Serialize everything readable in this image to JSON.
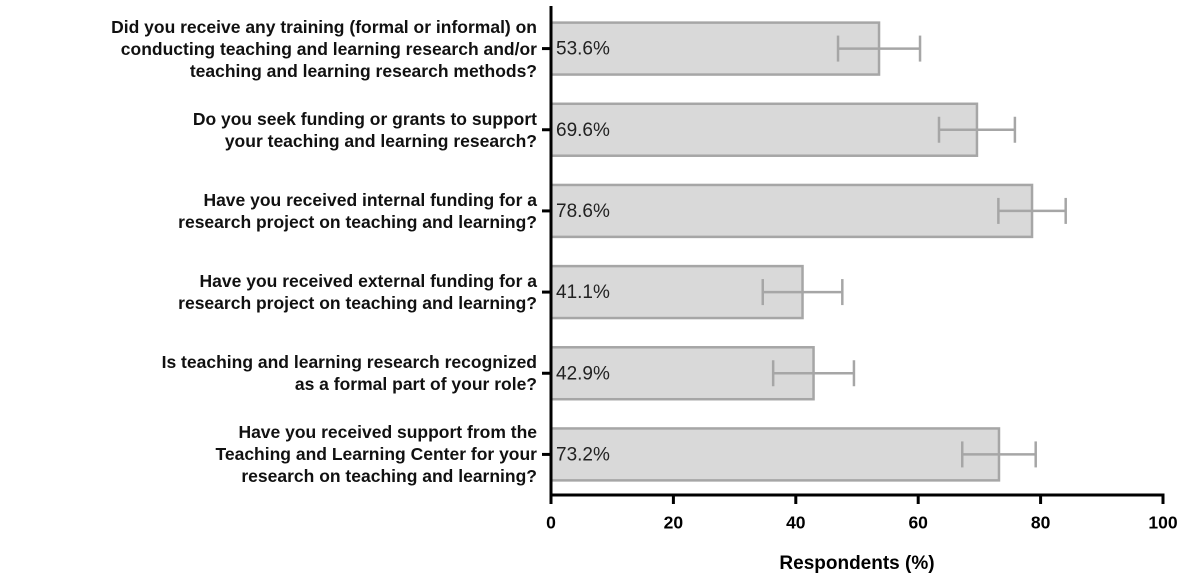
{
  "chart_data": {
    "type": "bar",
    "orientation": "horizontal",
    "categories": [
      "Did you receive any training (formal or informal) on\nconducting teaching and learning research and/or\nteaching and learning research methods?",
      "Do you seek funding or grants to support\nyour teaching and learning research?",
      "Have you received internal funding for a\nresearch project on teaching and learning?",
      "Have you received external funding for a\nresearch project on teaching and learning?",
      "Is teaching and learning research recognized\nas a formal part of your role?",
      "Have you received support from the\nTeaching and Learning Center for your\nresearch on teaching and learning?"
    ],
    "values": [
      53.6,
      69.6,
      78.6,
      41.1,
      42.9,
      73.2
    ],
    "value_labels": [
      "53.6%",
      "69.6%",
      "78.6%",
      "41.1%",
      "42.9%",
      "73.2%"
    ],
    "errors": [
      6.7,
      6.2,
      5.5,
      6.5,
      6.6,
      6.0
    ],
    "color": "#d9d9d9",
    "edge_color": "#a6a6a6",
    "error_color": "#a6a6a6",
    "xlabel": "Respondents (%)",
    "xlim": [
      0,
      100
    ],
    "xticks": [
      0,
      20,
      40,
      60,
      80,
      100
    ],
    "grid": false
  }
}
